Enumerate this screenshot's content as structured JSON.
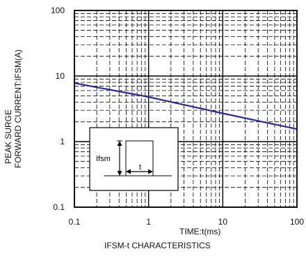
{
  "chart_data": {
    "type": "line",
    "title": "IFSM-t CHARACTERISTICS",
    "xlabel": "TIME:t(ms)",
    "ylabel_lines": [
      "PEAK SURGE",
      "FORWARD CURRENT:IFSM(A)"
    ],
    "x_scale": "log",
    "y_scale": "log",
    "xlim": [
      0.1,
      100
    ],
    "ylim": [
      0.1,
      100
    ],
    "x_ticks": [
      "0.1",
      "1",
      "10",
      "100"
    ],
    "y_ticks": [
      "0.1",
      "1",
      "10",
      "100"
    ],
    "grid": true,
    "series": [
      {
        "color": "#2a2a9a",
        "x": [
          0.1,
          1,
          10,
          100
        ],
        "y": [
          7.8,
          4.8,
          2.7,
          1.55
        ]
      }
    ],
    "inset": {
      "label_ifsm": "Ifsm",
      "label_t": "t"
    }
  }
}
